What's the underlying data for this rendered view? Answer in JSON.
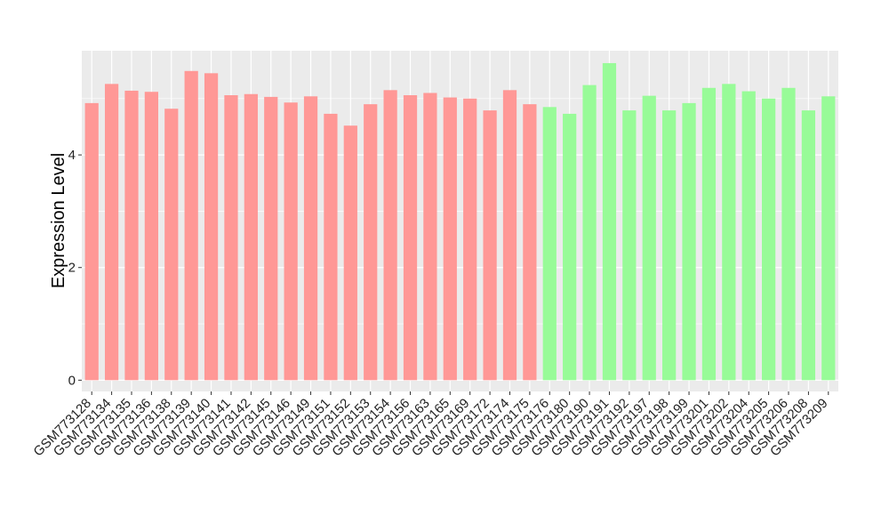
{
  "chart_data": {
    "type": "bar",
    "xlabel": "",
    "ylabel": "Expression Level",
    "ylim": [
      -0.2,
      5.85
    ],
    "yticks": [
      0,
      2,
      4
    ],
    "grid": true,
    "legend": "none",
    "categories": [
      "GSM773128",
      "GSM773134",
      "GSM773135",
      "GSM773136",
      "GSM773138",
      "GSM773139",
      "GSM773140",
      "GSM773141",
      "GSM773142",
      "GSM773145",
      "GSM773146",
      "GSM773149",
      "GSM773151",
      "GSM773152",
      "GSM773153",
      "GSM773154",
      "GSM773156",
      "GSM773163",
      "GSM773165",
      "GSM773169",
      "GSM773172",
      "GSM773174",
      "GSM773175",
      "GSM773176",
      "GSM773180",
      "GSM773190",
      "GSM773191",
      "GSM773192",
      "GSM773197",
      "GSM773198",
      "GSM773199",
      "GSM773201",
      "GSM773202",
      "GSM773204",
      "GSM773205",
      "GSM773206",
      "GSM773208",
      "GSM773209"
    ],
    "values": [
      4.92,
      5.26,
      5.14,
      5.12,
      4.82,
      5.49,
      5.45,
      5.06,
      5.08,
      5.03,
      4.93,
      5.04,
      4.73,
      4.52,
      4.9,
      5.15,
      5.06,
      5.1,
      5.02,
      5.0,
      4.79,
      5.15,
      4.9,
      4.85,
      4.73,
      5.24,
      5.63,
      4.79,
      5.05,
      4.79,
      4.92,
      5.19,
      5.26,
      5.13,
      5.0,
      5.19,
      4.79,
      5.04
    ],
    "group_colors": [
      "#ff9896",
      "#ff9896",
      "#ff9896",
      "#ff9896",
      "#ff9896",
      "#ff9896",
      "#ff9896",
      "#ff9896",
      "#ff9896",
      "#ff9896",
      "#ff9896",
      "#ff9896",
      "#ff9896",
      "#ff9896",
      "#ff9896",
      "#ff9896",
      "#ff9896",
      "#ff9896",
      "#ff9896",
      "#ff9896",
      "#ff9896",
      "#ff9896",
      "#ff9896",
      "#98fb98",
      "#98fb98",
      "#98fb98",
      "#98fb98",
      "#98fb98",
      "#98fb98",
      "#98fb98",
      "#98fb98",
      "#98fb98",
      "#98fb98",
      "#98fb98",
      "#98fb98",
      "#98fb98",
      "#98fb98",
      "#98fb98"
    ],
    "panel_background": "#ebebeb",
    "grid_color": "#ffffff"
  }
}
